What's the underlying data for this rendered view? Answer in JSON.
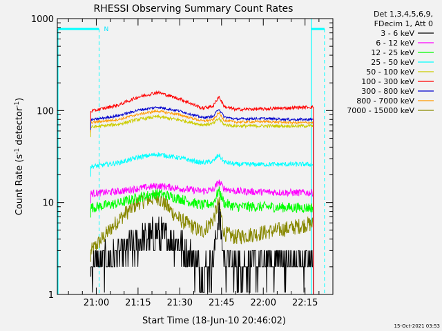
{
  "chart_data": {
    "type": "line",
    "title": "RHESSI Observing Summary Count Rates",
    "xlabel": "Start Time (18-Jun-10 20:46:02)",
    "ylabel": "Count Rate (s",
    "ylabel_sup1": "-1",
    "ylabel_mid": " detector",
    "ylabel_sup2": "-1",
    "ylabel_end": ")",
    "yscale": "log",
    "ylim": [
      1,
      1000
    ],
    "x_ticks": [
      "21:00",
      "21:15",
      "21:30",
      "21:45",
      "22:00",
      "22:15"
    ],
    "y_ticks": [
      "1",
      "10",
      "100",
      "1000"
    ],
    "legend_header": [
      "Det 1,3,4,5,6,9,",
      "FDecim 1, Att 0"
    ],
    "legend_position": "right",
    "timestamp": "15-Oct-2021 03:53",
    "annotation": "N",
    "series": [
      {
        "name": "3 - 6 keV",
        "color": "#000000",
        "times": [
          "20:58",
          "21:08",
          "21:15",
          "21:22",
          "21:30",
          "21:38",
          "21:42",
          "21:44",
          "21:46",
          "21:50",
          "22:00",
          "22:10",
          "22:16"
        ],
        "values": [
          2,
          2.6,
          3.6,
          4.6,
          3.5,
          1.8,
          2.2,
          7.5,
          2.2,
          2,
          2.2,
          2.3,
          2.3
        ]
      },
      {
        "name": "6 - 12 keV",
        "color": "#ff00ff",
        "times": [
          "20:58",
          "21:08",
          "21:15",
          "21:22",
          "21:30",
          "21:38",
          "21:42",
          "21:44",
          "21:46",
          "21:50",
          "22:00",
          "22:10",
          "22:16"
        ],
        "values": [
          12.5,
          13.2,
          14.2,
          15.2,
          14.2,
          13.3,
          13.7,
          16.8,
          14.2,
          13.3,
          13,
          12.8,
          12.8
        ]
      },
      {
        "name": "12 - 25 keV",
        "color": "#00ff00",
        "times": [
          "20:58",
          "21:08",
          "21:15",
          "21:22",
          "21:30",
          "21:38",
          "21:42",
          "21:44",
          "21:46",
          "21:50",
          "22:00",
          "22:10",
          "22:16"
        ],
        "values": [
          8.8,
          9.8,
          11.3,
          12.6,
          11,
          9.3,
          9.8,
          13.5,
          9.8,
          9,
          9,
          8.8,
          8.8
        ]
      },
      {
        "name": "25 - 50 keV",
        "color": "#00ffff",
        "times": [
          "20:58",
          "21:08",
          "21:15",
          "21:22",
          "21:30",
          "21:38",
          "21:42",
          "21:44",
          "21:46",
          "21:50",
          "22:00",
          "22:10",
          "22:16"
        ],
        "values": [
          24.5,
          27,
          31,
          33.5,
          30.5,
          27,
          28,
          33,
          27.5,
          26,
          26,
          26,
          26
        ]
      },
      {
        "name": "50 - 100 keV",
        "color": "#cccc00",
        "times": [
          "20:58",
          "21:08",
          "21:15",
          "21:22",
          "21:30",
          "21:38",
          "21:42",
          "21:44",
          "21:46",
          "21:50",
          "22:00",
          "22:10",
          "22:16"
        ],
        "values": [
          66,
          71,
          80,
          86,
          79,
          70,
          72,
          82,
          70,
          68,
          68,
          68,
          68
        ]
      },
      {
        "name": "100 - 300 keV",
        "color": "#ff0000",
        "times": [
          "20:58",
          "21:08",
          "21:15",
          "21:22",
          "21:30",
          "21:38",
          "21:42",
          "21:44",
          "21:46",
          "21:50",
          "22:00",
          "22:10",
          "22:16"
        ],
        "values": [
          98,
          115,
          140,
          158,
          134,
          106,
          112,
          143,
          110,
          103,
          104,
          107,
          109
        ]
      },
      {
        "name": "300 - 800 keV",
        "color": "#0000cc",
        "times": [
          "20:58",
          "21:08",
          "21:15",
          "21:22",
          "21:30",
          "21:38",
          "21:42",
          "21:44",
          "21:46",
          "21:50",
          "22:00",
          "22:10",
          "22:16"
        ],
        "values": [
          79,
          88,
          101,
          109,
          99,
          84,
          86,
          105,
          85,
          81,
          82,
          80,
          80
        ]
      },
      {
        "name": "800 - 7000 keV",
        "color": "#ff9900",
        "times": [
          "20:58",
          "21:08",
          "21:15",
          "21:22",
          "21:30",
          "21:38",
          "21:42",
          "21:44",
          "21:46",
          "21:50",
          "22:00",
          "22:10",
          "22:16"
        ],
        "values": [
          74,
          80,
          91,
          99,
          90,
          77,
          79,
          95,
          78,
          75,
          76,
          74,
          74
        ]
      },
      {
        "name": "7000 - 15000 keV",
        "color": "#888800",
        "times": [
          "20:58",
          "21:08",
          "21:15",
          "21:22",
          "21:30",
          "21:38",
          "21:42",
          "21:44",
          "21:46",
          "21:50",
          "22:00",
          "22:10",
          "22:16"
        ],
        "values": [
          2.9,
          6.5,
          10,
          11.5,
          6.5,
          4.8,
          6.5,
          10,
          4.6,
          4.2,
          4.7,
          5.3,
          5.8
        ]
      }
    ]
  }
}
